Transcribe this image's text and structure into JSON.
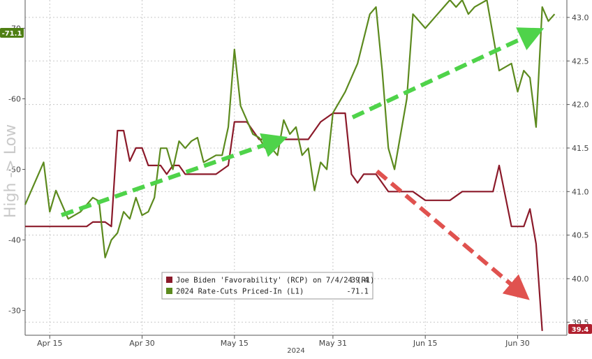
{
  "chart_data": {
    "type": "line",
    "title": "",
    "x_labels": [
      "Apr 15",
      "Apr 30",
      "May 15",
      "May 31",
      "Jun 15",
      "Jun 30"
    ],
    "x_label_days": [
      15,
      30,
      45,
      61,
      76,
      91
    ],
    "x_year": "2024",
    "x_domain_days": [
      11,
      99
    ],
    "left_axis": {
      "label": "High -> Low",
      "ticks": [
        -30,
        -40,
        -50,
        -60,
        -70
      ],
      "range": [
        -26.5,
        -74
      ]
    },
    "right_axis": {
      "ticks": [
        "39.5",
        "40.0",
        "40.5",
        "41.0",
        "41.5",
        "42.0",
        "42.5",
        "43.0"
      ],
      "range": [
        39.35,
        43.2
      ]
    },
    "grid": true,
    "legend_position": "bottom-center",
    "series": [
      {
        "name": "Joe Biden 'Favorability' (RCP) on 7/4/24 (R1)",
        "legend_value": "39.4",
        "badge": "39.4",
        "axis": "right",
        "color": "#8b1a2a",
        "x": [
          11,
          20,
          21,
          22,
          24,
          25,
          26,
          27,
          28,
          29,
          30,
          31,
          32,
          33,
          34,
          35,
          36,
          37,
          38,
          40,
          42,
          44,
          45,
          47,
          49,
          52,
          55,
          57,
          59,
          61,
          63,
          64,
          65,
          66,
          68,
          70,
          72,
          74,
          76,
          78,
          80,
          82,
          84,
          85,
          86,
          87,
          88,
          90,
          92,
          93,
          94,
          95
        ],
        "y": [
          40.6,
          40.6,
          40.6,
          40.65,
          40.65,
          40.6,
          41.7,
          41.7,
          41.35,
          41.5,
          41.5,
          41.3,
          41.3,
          41.3,
          41.2,
          41.3,
          41.3,
          41.2,
          41.2,
          41.2,
          41.2,
          41.3,
          41.8,
          41.8,
          41.6,
          41.6,
          41.6,
          41.6,
          41.8,
          41.9,
          41.9,
          41.2,
          41.1,
          41.2,
          41.2,
          41.0,
          41.0,
          41.0,
          40.9,
          40.9,
          40.9,
          41.0,
          41.0,
          41.0,
          41.0,
          41.0,
          41.3,
          40.6,
          40.6,
          40.8,
          40.4,
          39.4
        ]
      },
      {
        "name": "2024 Rate-Cuts Priced-In (L1)",
        "legend_value": "-71.1",
        "badge": "-71.1",
        "axis": "left",
        "color": "#5c8a1e",
        "x": [
          11,
          14,
          15,
          16,
          18,
          20,
          22,
          23,
          24,
          25,
          26,
          27,
          28,
          29,
          30,
          31,
          32,
          33,
          34,
          35,
          36,
          37,
          38,
          39,
          40,
          42,
          43,
          44,
          45,
          46,
          47,
          48,
          49,
          50,
          51,
          52,
          53,
          54,
          55,
          56,
          57,
          58,
          59,
          60,
          61,
          63,
          65,
          67,
          68,
          69,
          70,
          71,
          72,
          73,
          74,
          75,
          76,
          78,
          80,
          81,
          82,
          83,
          84,
          86,
          88,
          90,
          91,
          92,
          93,
          94,
          95,
          96,
          97
        ],
        "y": [
          -45,
          -51,
          -44,
          -47,
          -43,
          -44,
          -46,
          -45.5,
          -37.5,
          -40,
          -41,
          -44,
          -43,
          -46,
          -43.5,
          -44,
          -46,
          -53,
          -53,
          -50,
          -54,
          -53,
          -54,
          -54.5,
          -51,
          -52,
          -52,
          -56,
          -67,
          -59,
          -57,
          -55,
          -54.5,
          -53,
          -53,
          -52,
          -57,
          -55,
          -56,
          -52,
          -53,
          -47,
          -51,
          -50,
          -58,
          -61,
          -65,
          -72,
          -73,
          -64,
          -53,
          -50,
          -55,
          -60,
          -72,
          -71,
          -70,
          -72,
          -74,
          -73,
          -74,
          -72,
          -73,
          -74,
          -64,
          -65,
          -61,
          -64,
          -63,
          -56,
          -73,
          -71,
          -72
        ]
      }
    ]
  }
}
